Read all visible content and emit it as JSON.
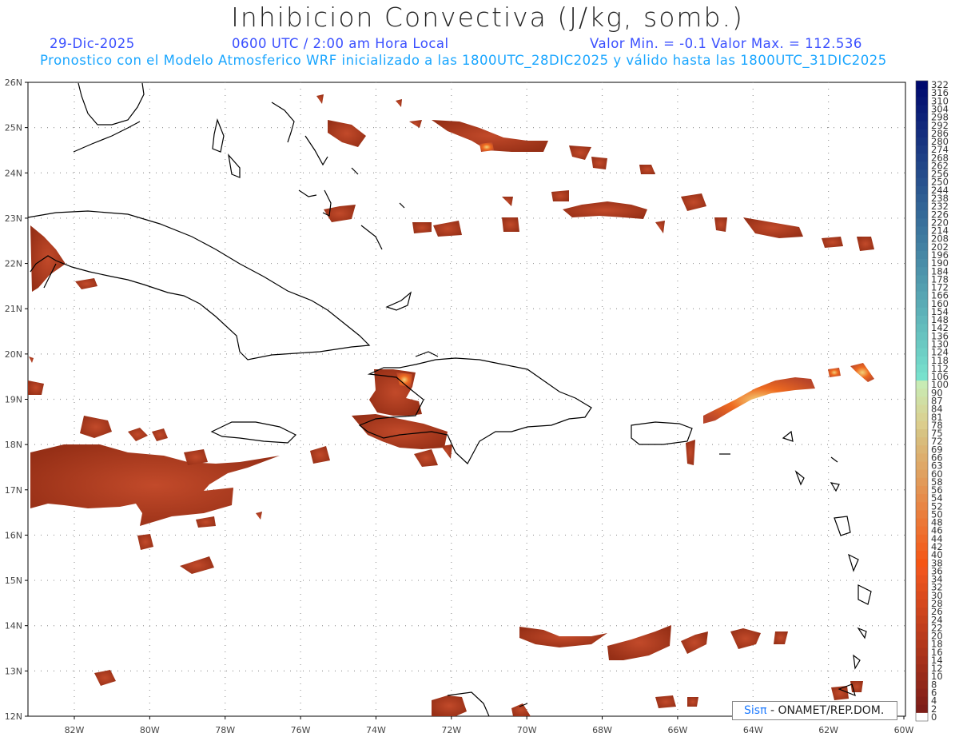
{
  "title": "Inhibicion Convectiva (J/kg, somb.)",
  "date": "29-Dic-2025",
  "time": "0600 UTC / 2:00 am Hora Local",
  "minmax": "Valor Min. = -0.1  Valor Max. = 112.536",
  "model_line": "Pronostico con el Modelo Atmosferico WRF inicializado a las 1800UTC_28DIC2025 y válido hasta las  1800UTC_31DIC2025",
  "credit": {
    "logo": "Sisπ",
    "org": " -  ONAMET/REP.DOM."
  },
  "lat_labels": [
    "26N",
    "25N",
    "24N",
    "23N",
    "22N",
    "21N",
    "20N",
    "19N",
    "18N",
    "17N",
    "16N",
    "15N",
    "14N",
    "13N",
    "12N"
  ],
  "lon_labels": [
    "82W",
    "80W",
    "78W",
    "76W",
    "74W",
    "72W",
    "70W",
    "68W",
    "66W",
    "64W",
    "62W",
    "60W"
  ],
  "colorbar_labels": [
    "322",
    "316",
    "310",
    "304",
    "298",
    "292",
    "286",
    "280",
    "274",
    "268",
    "262",
    "256",
    "250",
    "244",
    "238",
    "232",
    "226",
    "220",
    "214",
    "208",
    "202",
    "196",
    "190",
    "184",
    "178",
    "172",
    "166",
    "160",
    "154",
    "148",
    "142",
    "136",
    "130",
    "124",
    "118",
    "112",
    "106",
    "100",
    "90",
    "87",
    "84",
    "81",
    "78",
    "75",
    "72",
    "69",
    "66",
    "63",
    "60",
    "58",
    "56",
    "54",
    "52",
    "50",
    "48",
    "46",
    "44",
    "42",
    "40",
    "38",
    "36",
    "34",
    "32",
    "30",
    "28",
    "26",
    "24",
    "22",
    "20",
    "18",
    "16",
    "14",
    "12",
    "10",
    "8",
    "6",
    "4",
    "2",
    "0"
  ],
  "colors": {
    "title": "#222222",
    "header_blue": "#3a4fff",
    "header_cyan": "#1aa6ff",
    "field_base": "#9a3318",
    "field_mid": "#b8452a",
    "field_high": "#e8541e",
    "field_peak": "#f2d27a",
    "coast": "#000000",
    "grid": "#9a9a9a"
  }
}
